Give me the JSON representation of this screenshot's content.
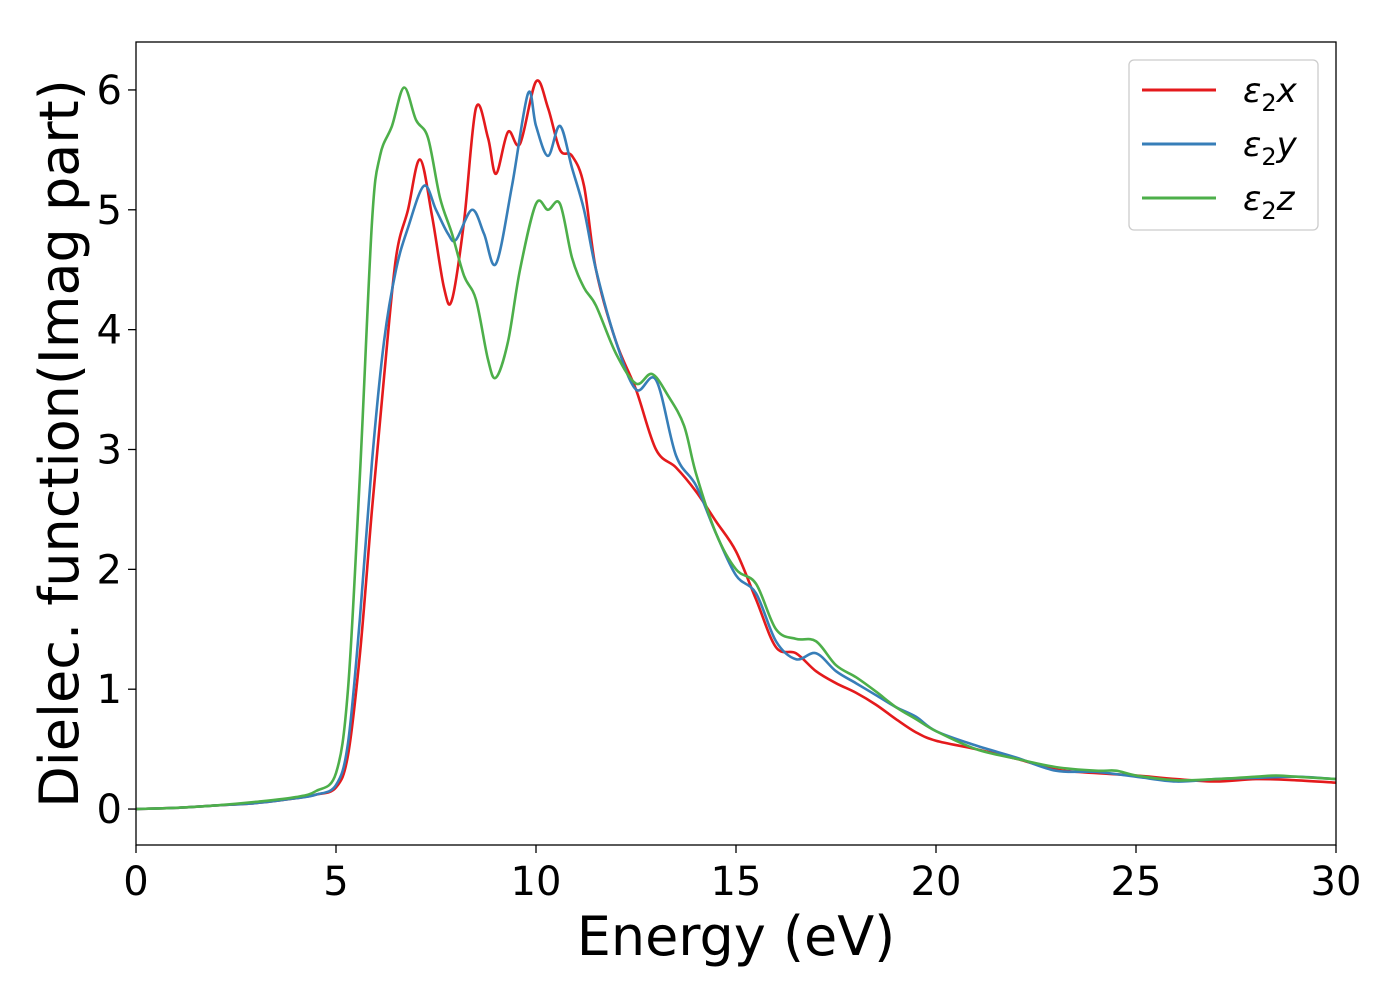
{
  "chart_data": {
    "type": "line",
    "xlabel": "Energy (eV)",
    "ylabel": "Dielec. function(Imag part)",
    "xlim": [
      0,
      30
    ],
    "ylim": [
      -0.3,
      6.4
    ],
    "xticks": [
      0,
      5,
      10,
      15,
      20,
      25,
      30
    ],
    "yticks": [
      0,
      1,
      2,
      3,
      4,
      5,
      6
    ],
    "grid": false,
    "legend_position": "top-right",
    "series": [
      {
        "name": "x",
        "color": "#e41a1c",
        "x": [
          0,
          1,
          2,
          3,
          4,
          4.5,
          5,
          5.3,
          5.6,
          5.9,
          6.2,
          6.5,
          6.8,
          7.1,
          7.4,
          7.7,
          7.9,
          8.2,
          8.5,
          8.8,
          9.0,
          9.3,
          9.6,
          10.0,
          10.3,
          10.6,
          10.9,
          11.2,
          11.5,
          12.0,
          12.5,
          13.0,
          13.5,
          14.0,
          14.5,
          15.0,
          15.5,
          16.0,
          16.5,
          17.0,
          17.5,
          18.0,
          18.5,
          19.0,
          19.5,
          20.0,
          21.0,
          22.0,
          23.0,
          24.0,
          25.0,
          26.0,
          27.0,
          28.0,
          29.0,
          30.0
        ],
        "y": [
          0.0,
          0.01,
          0.03,
          0.05,
          0.09,
          0.12,
          0.18,
          0.45,
          1.3,
          2.5,
          3.6,
          4.6,
          5.0,
          5.42,
          4.95,
          4.35,
          4.25,
          4.9,
          5.85,
          5.6,
          5.3,
          5.65,
          5.55,
          6.07,
          5.85,
          5.5,
          5.45,
          5.2,
          4.5,
          3.9,
          3.5,
          3.0,
          2.85,
          2.65,
          2.4,
          2.15,
          1.75,
          1.35,
          1.3,
          1.15,
          1.05,
          0.97,
          0.87,
          0.75,
          0.64,
          0.57,
          0.5,
          0.42,
          0.33,
          0.3,
          0.28,
          0.25,
          0.23,
          0.25,
          0.24,
          0.22
        ]
      },
      {
        "name": "y",
        "color": "#377eb8",
        "x": [
          0,
          1,
          2,
          3,
          4,
          4.5,
          5,
          5.3,
          5.6,
          5.9,
          6.2,
          6.5,
          6.8,
          7.2,
          7.5,
          7.8,
          8.0,
          8.4,
          8.7,
          9.0,
          9.4,
          9.8,
          10.0,
          10.3,
          10.6,
          10.9,
          11.2,
          11.5,
          12.0,
          12.5,
          13.0,
          13.5,
          14.0,
          14.5,
          15.0,
          15.5,
          16.0,
          16.5,
          17.0,
          17.5,
          18.0,
          18.5,
          19.0,
          19.5,
          20.0,
          21.0,
          22.0,
          23.0,
          24.0,
          25.0,
          26.0,
          27.0,
          28.0,
          29.0,
          30.0
        ],
        "y": [
          0.0,
          0.01,
          0.03,
          0.05,
          0.09,
          0.12,
          0.2,
          0.55,
          1.6,
          2.9,
          3.9,
          4.5,
          4.85,
          5.2,
          5.0,
          4.8,
          4.75,
          5.0,
          4.8,
          4.55,
          5.2,
          5.97,
          5.7,
          5.45,
          5.7,
          5.35,
          5.0,
          4.5,
          3.9,
          3.5,
          3.58,
          2.95,
          2.7,
          2.3,
          1.95,
          1.8,
          1.4,
          1.25,
          1.3,
          1.15,
          1.05,
          0.95,
          0.85,
          0.77,
          0.65,
          0.53,
          0.43,
          0.32,
          0.31,
          0.27,
          0.23,
          0.25,
          0.26,
          0.27,
          0.25
        ]
      },
      {
        "name": "z",
        "color": "#4daf4a",
        "x": [
          0,
          1,
          2,
          3,
          4,
          4.5,
          5,
          5.3,
          5.6,
          5.9,
          6.1,
          6.4,
          6.7,
          7.0,
          7.3,
          7.6,
          7.9,
          8.2,
          8.5,
          8.8,
          9.0,
          9.3,
          9.6,
          10.0,
          10.3,
          10.6,
          10.9,
          11.2,
          11.5,
          12.0,
          12.5,
          12.9,
          13.3,
          13.7,
          14.0,
          14.5,
          15.0,
          15.5,
          16.0,
          16.5,
          17.0,
          17.5,
          18.0,
          18.5,
          19.0,
          19.5,
          20.0,
          21.0,
          22.0,
          23.0,
          24.0,
          24.5,
          25.0,
          26.0,
          27.0,
          28.0,
          28.5,
          29.0,
          30.0
        ],
        "y": [
          0.0,
          0.01,
          0.03,
          0.06,
          0.1,
          0.15,
          0.3,
          1.0,
          2.8,
          4.9,
          5.45,
          5.7,
          6.02,
          5.75,
          5.6,
          5.1,
          4.8,
          4.45,
          4.25,
          3.75,
          3.6,
          3.9,
          4.5,
          5.05,
          5.0,
          5.05,
          4.6,
          4.35,
          4.2,
          3.8,
          3.55,
          3.63,
          3.45,
          3.2,
          2.8,
          2.3,
          2.0,
          1.88,
          1.5,
          1.42,
          1.4,
          1.2,
          1.1,
          0.98,
          0.85,
          0.75,
          0.65,
          0.5,
          0.42,
          0.35,
          0.32,
          0.32,
          0.28,
          0.24,
          0.25,
          0.27,
          0.28,
          0.27,
          0.25
        ]
      }
    ],
    "legend": [
      {
        "symbol": "ε",
        "sub": "2",
        "suffix": "x"
      },
      {
        "symbol": "ε",
        "sub": "2",
        "suffix": "y"
      },
      {
        "symbol": "ε",
        "sub": "2",
        "suffix": "z"
      }
    ]
  }
}
